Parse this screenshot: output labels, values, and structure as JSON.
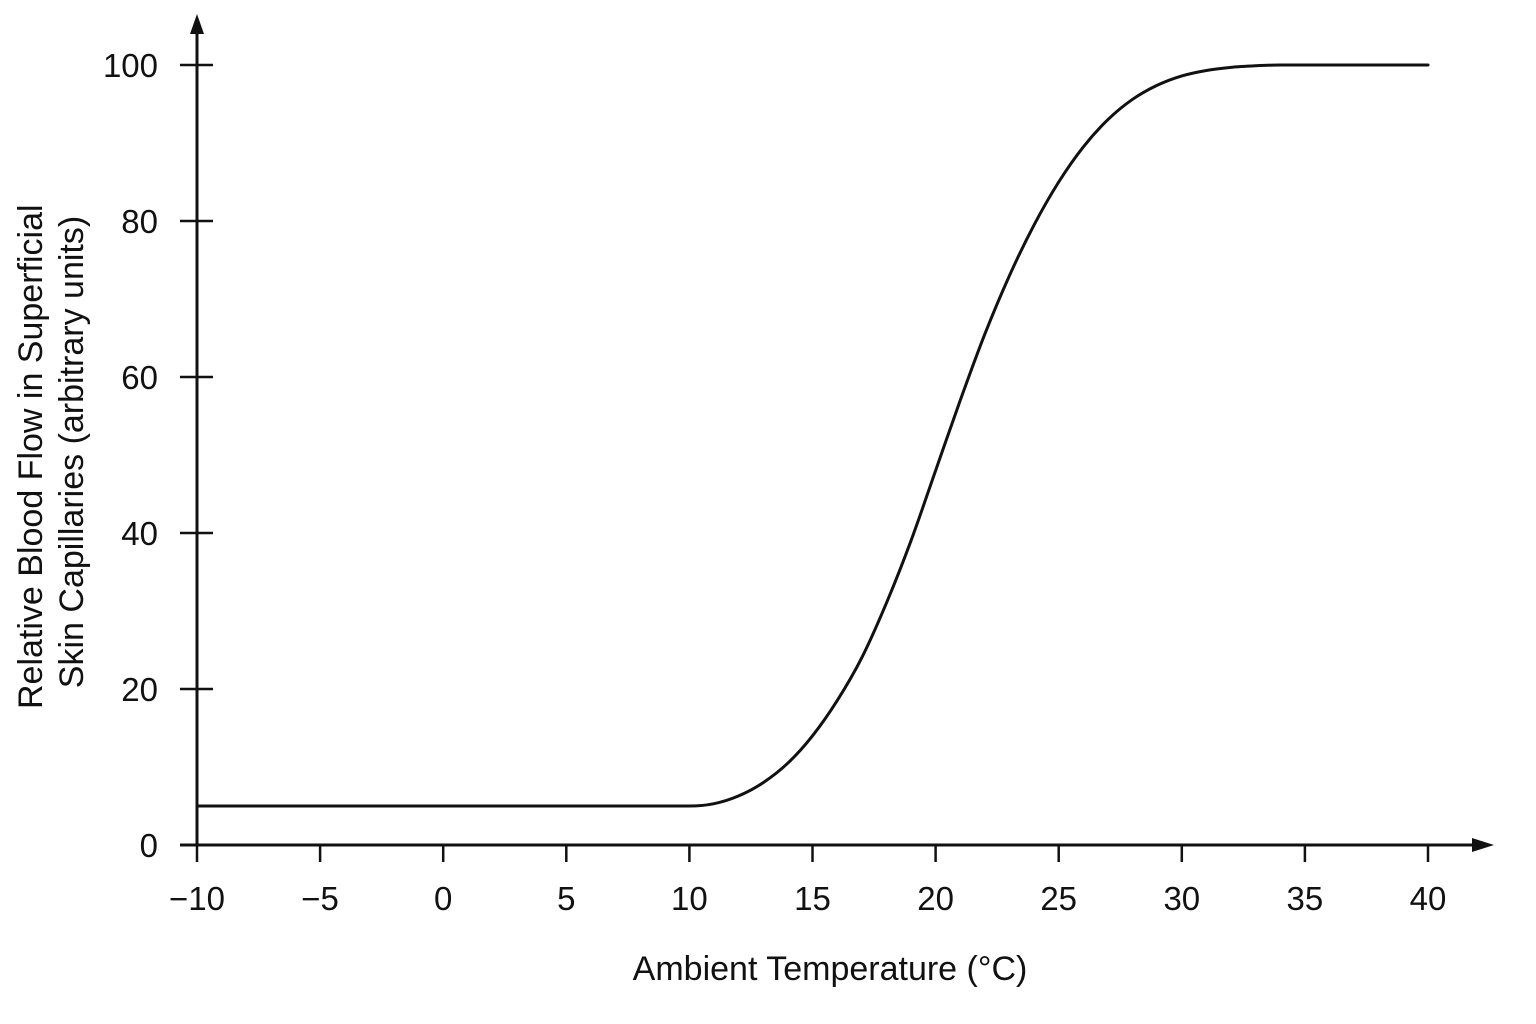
{
  "chart_data": {
    "type": "line",
    "title": "",
    "xlabel": "Ambient Temperature (°C)",
    "ylabel_lines": [
      "Relative Blood Flow in Superficial",
      "Skin Capillaries (arbitrary units)"
    ],
    "xlim": [
      -10,
      40
    ],
    "ylim": [
      0,
      100
    ],
    "x_ticks": [
      -10,
      -5,
      0,
      5,
      10,
      15,
      20,
      25,
      30,
      35,
      40
    ],
    "x_tick_labels": [
      "−10",
      "−5",
      "0",
      "5",
      "10",
      "15",
      "20",
      "25",
      "30",
      "35",
      "40"
    ],
    "y_ticks": [
      0,
      20,
      40,
      60,
      80,
      100
    ],
    "y_tick_labels": [
      "0",
      "20",
      "40",
      "60",
      "80",
      "100"
    ],
    "grid": false,
    "series": [
      {
        "x": [
          -10,
          -5,
          0,
          5,
          10,
          11,
          12,
          13,
          14,
          15,
          16,
          17,
          18,
          19,
          20,
          21,
          22,
          23,
          24,
          25,
          26,
          27,
          28,
          29,
          30,
          31,
          32,
          33,
          34,
          35,
          36,
          37,
          38,
          39,
          40
        ],
        "y": [
          5,
          5,
          5,
          5,
          5,
          5.3,
          6.3,
          8,
          10.5,
          14,
          18.5,
          24,
          31,
          39,
          48,
          57,
          65.5,
          73,
          79.5,
          85,
          89.5,
          93,
          95.6,
          97.4,
          98.6,
          99.3,
          99.7,
          99.9,
          100,
          100,
          100,
          100,
          100,
          100,
          100
        ]
      }
    ],
    "style": {
      "line_color": "#111111",
      "axis_color": "#111111",
      "background": "#ffffff"
    }
  }
}
